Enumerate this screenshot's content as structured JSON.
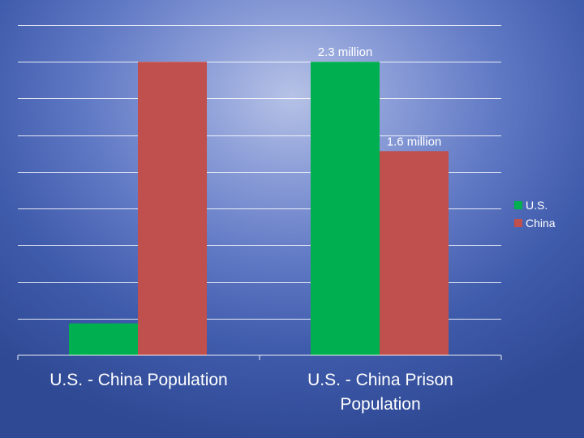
{
  "chart_data": {
    "type": "bar",
    "categories": [
      "U.S. - China Population",
      "U.S. - China Prison Population"
    ],
    "series": [
      {
        "name": "U.S.",
        "color": "#00b050",
        "values": [
          0.25,
          2.3
        ]
      },
      {
        "name": "China",
        "color": "#c0504d",
        "values": [
          2.3,
          1.6
        ]
      }
    ],
    "data_labels": [
      {
        "series": 0,
        "category": 1,
        "text": "2.3 million"
      },
      {
        "series": 1,
        "category": 1,
        "text": "1.6 million"
      }
    ],
    "ylim": [
      0,
      2.6
    ],
    "y_gridline_step": 0.2875,
    "grid": true,
    "legend_position": "right",
    "title": "",
    "xlabel": "",
    "ylabel": ""
  },
  "legend": {
    "items": [
      {
        "label": "U.S.",
        "color": "#00b050"
      },
      {
        "label": "China",
        "color": "#c0504d"
      }
    ]
  },
  "categories": {
    "c0": "U.S. - China Population",
    "c1_line1": "U.S. - China Prison",
    "c1_line2": "Population"
  }
}
